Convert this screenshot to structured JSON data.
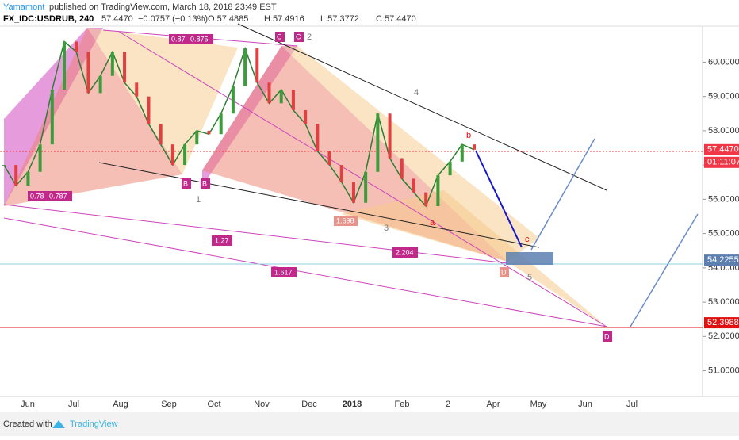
{
  "header": {
    "author": "Yamamont",
    "published": "published on TradingView.com, March 18, 2018 23:49 EST",
    "symbol": "FX_IDC:USDRUB, 240",
    "last": "57.4470",
    "change": "−0.0757 (−0.13%)",
    "open": "O:57.4885",
    "high": "H:57.4916",
    "low": "L:57.3772",
    "close": "C:57.4470"
  },
  "chart_data": {
    "type": "candlestick-screenshot",
    "x_labels": [
      "Jun",
      "Jul",
      "Aug",
      "Sep",
      "Oct",
      "Nov",
      "Dec",
      "2018",
      "Feb",
      "2",
      "Apr",
      "May",
      "Jun",
      "Jul"
    ],
    "ylim": [
      50.25,
      61.05
    ],
    "yticks": [
      {
        "value": 60,
        "label": "60.0000"
      },
      {
        "value": 59,
        "label": "59.0000"
      },
      {
        "value": 58,
        "label": "58.0000"
      },
      {
        "value": 57,
        "label": "57.0000"
      },
      {
        "value": 56,
        "label": "56.0000"
      },
      {
        "value": 55,
        "label": "55.0000"
      },
      {
        "value": 54,
        "label": "54.0000"
      },
      {
        "value": 53,
        "label": "53.0000"
      },
      {
        "value": 52,
        "label": "52.0000"
      },
      {
        "value": 51,
        "label": "51.0000"
      }
    ],
    "price_tags": [
      {
        "value": 57.447,
        "label": "57.4470",
        "color": "#f23645"
      },
      {
        "value": 54.2255,
        "label": "54.2255",
        "color": "#5d7fb0"
      },
      {
        "value": 52.3988,
        "label": "52.3988",
        "color": "#e01010"
      }
    ],
    "countdown": "01:11:07",
    "closes": [
      57.0,
      56.4,
      56.8,
      57.6,
      59.2,
      60.6,
      60.3,
      59.1,
      59.6,
      60.3,
      59.4,
      59.0,
      58.2,
      57.6,
      57.0,
      57.6,
      58.0,
      57.9,
      58.5,
      59.3,
      60.4,
      59.4,
      58.8,
      59.2,
      58.6,
      58.2,
      57.4,
      57.0,
      56.5,
      55.9,
      56.8,
      58.5,
      57.2,
      56.6,
      56.2,
      55.8,
      56.7,
      57.1,
      57.6,
      57.447
    ],
    "annotations": [
      "0.87",
      "0.875",
      "C",
      "C",
      "2",
      "B",
      "B",
      "1",
      "0.78",
      "0.787",
      "4",
      "b",
      "a",
      "3",
      "1.698",
      "2.204",
      "1.27",
      "1.617",
      "c",
      "D",
      "5",
      "D"
    ]
  },
  "footer": {
    "created": "Created with",
    "brand": "TradingView"
  }
}
